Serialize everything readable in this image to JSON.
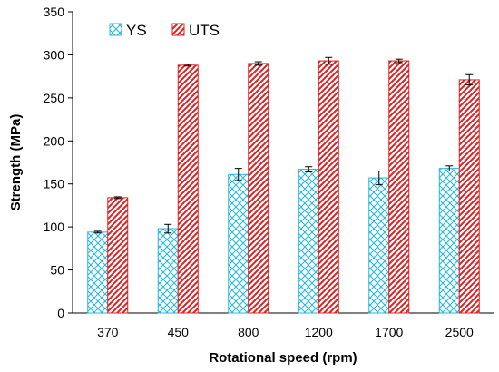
{
  "chart_data": {
    "type": "bar",
    "categories": [
      "370",
      "450",
      "800",
      "1200",
      "1700",
      "2500"
    ],
    "series": [
      {
        "name": "YS",
        "values": [
          94,
          98,
          161,
          167,
          157,
          168
        ],
        "errors": [
          1,
          5,
          7,
          3,
          8,
          3
        ],
        "color": "#27b7d8",
        "pattern": "crosshatch"
      },
      {
        "name": "UTS",
        "values": [
          134,
          288,
          290,
          293,
          293,
          271
        ],
        "errors": [
          1,
          1,
          2,
          4,
          2,
          6
        ],
        "color": "#e02020",
        "pattern": "diagonal-stripes"
      }
    ],
    "xlabel": "Rotational speed (rpm)",
    "ylabel": "Strength (MPa)",
    "ylim": [
      0,
      350
    ],
    "yticks": [
      "0",
      "50",
      "100",
      "150",
      "200",
      "250",
      "300",
      "350"
    ],
    "grid": false,
    "legend_position": "top-left"
  }
}
